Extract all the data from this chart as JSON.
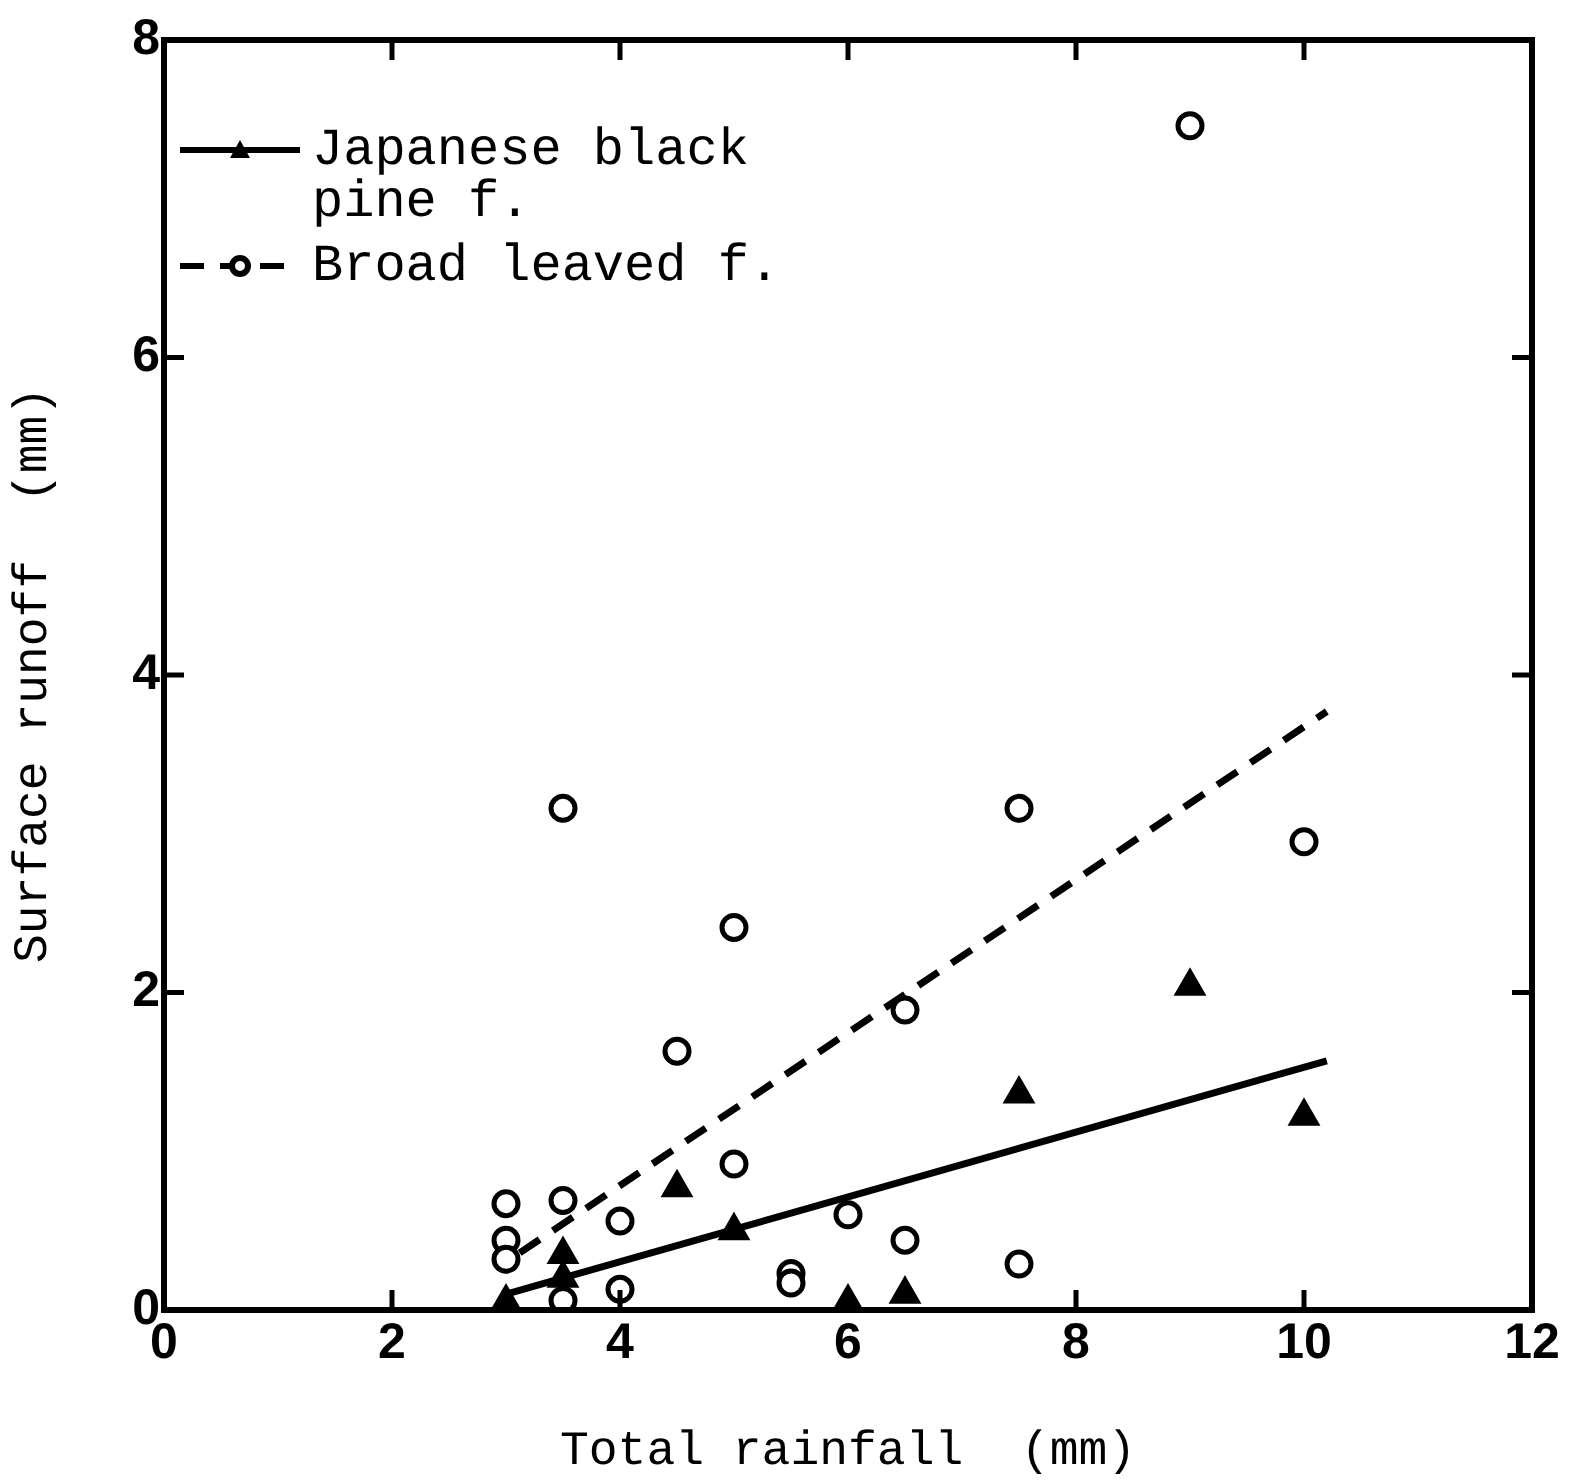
{
  "chart_data": {
    "type": "scatter",
    "xlabel": "Total rainfall  (mm)",
    "ylabel": "Surface runoff  (mm)",
    "xlim": [
      0,
      12
    ],
    "ylim": [
      0,
      8
    ],
    "xticks": [
      0,
      2,
      4,
      6,
      8,
      10,
      12
    ],
    "yticks": [
      0,
      2,
      4,
      6,
      8
    ],
    "grid": false,
    "legend": "top left",
    "series": [
      {
        "name": "Japanese black pine f.",
        "type": "scatter",
        "color": "#000000",
        "marker": "triangle",
        "line_style": "solid",
        "x": [
          3.0,
          3.5,
          3.5,
          4.5,
          5.0,
          6.0,
          6.5,
          7.5,
          9.0,
          10.0
        ],
        "values": [
          0.05,
          0.35,
          0.2,
          0.77,
          0.5,
          0.05,
          0.1,
          1.36,
          2.04,
          1.22
        ]
      },
      {
        "name": "Broad leaved f.",
        "type": "scatter",
        "color": "#000000",
        "marker": "circle",
        "line_style": "dashed",
        "x": [
          3.0,
          3.0,
          3.0,
          3.5,
          3.5,
          3.5,
          4.0,
          4.0,
          4.5,
          5.0,
          5.0,
          5.5,
          5.5,
          6.0,
          6.5,
          6.5,
          7.5,
          7.5,
          9.0,
          10.0
        ],
        "values": [
          0.67,
          0.44,
          0.32,
          3.16,
          0.69,
          0.06,
          0.56,
          0.13,
          1.63,
          2.41,
          0.92,
          0.23,
          0.17,
          0.6,
          1.89,
          0.44,
          3.16,
          0.29,
          7.46,
          2.95
        ]
      },
      {
        "type": "line",
        "color": "#000000",
        "line_style": "solid",
        "marker": "none",
        "x": [
          3.0,
          10.2
        ],
        "values": [
          0.1,
          1.57
        ]
      },
      {
        "type": "line",
        "color": "#000000",
        "line_style": "dashed",
        "marker": "none",
        "x": [
          3.12,
          10.2
        ],
        "values": [
          0.36,
          3.77
        ]
      }
    ]
  }
}
